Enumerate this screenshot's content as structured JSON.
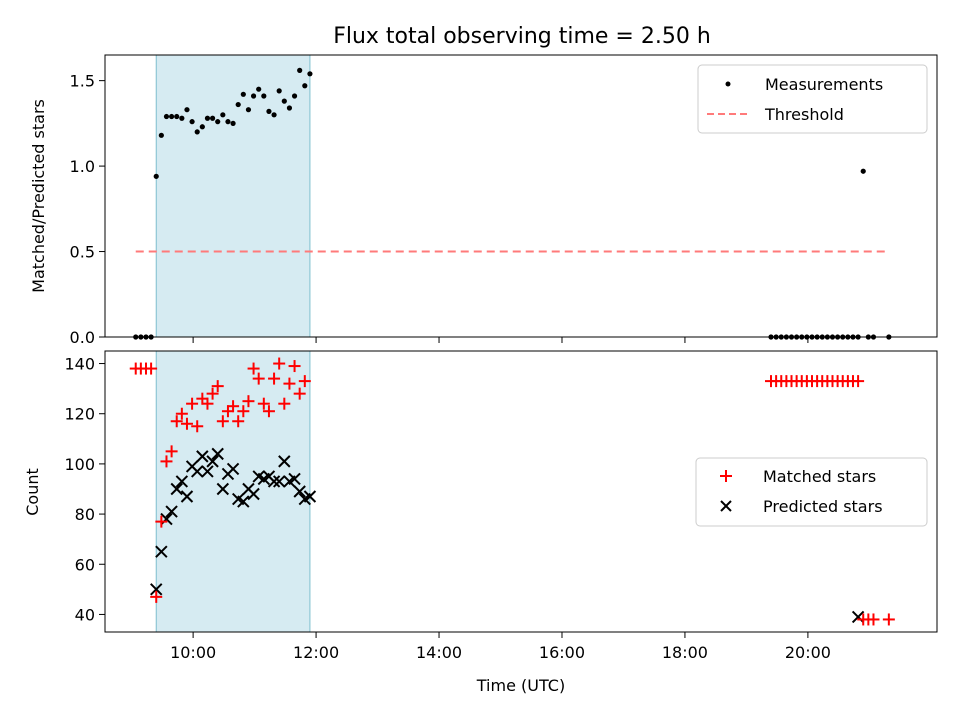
{
  "colors": {
    "measurement": "#000000",
    "threshold": "#ff7a7a",
    "matched": "#ff0000",
    "predicted": "#000000",
    "shade": "#add8e6"
  },
  "chart_data": [
    {
      "type": "scatter",
      "title": "Flux total observing time = 2.50 h",
      "xlabel": "",
      "ylabel": "Matched/Predicted stars",
      "xlim": [
        "08:34",
        "22:06"
      ],
      "ylim": [
        0,
        1.65
      ],
      "yticks": [
        0.0,
        0.5,
        1.0,
        1.5
      ],
      "yticklabels": [
        "0.0",
        "0.5",
        "1.0",
        "1.5"
      ],
      "grid": false,
      "legend": "top-right",
      "shaded_interval": [
        "09:24",
        "11:54"
      ],
      "series": [
        {
          "name": "Measurements",
          "x": [
            "09:04",
            "09:09",
            "09:14",
            "09:19",
            "09:24",
            "09:29",
            "09:34",
            "09:39",
            "09:44",
            "09:49",
            "09:54",
            "09:59",
            "10:04",
            "10:09",
            "10:14",
            "10:19",
            "10:24",
            "10:29",
            "10:34",
            "10:39",
            "10:44",
            "10:49",
            "10:54",
            "10:59",
            "11:04",
            "11:09",
            "11:14",
            "11:19",
            "11:24",
            "11:29",
            "11:34",
            "11:39",
            "11:44",
            "11:49",
            "11:54",
            "19:24",
            "19:29",
            "19:34",
            "19:39",
            "19:44",
            "19:49",
            "19:54",
            "19:59",
            "20:04",
            "20:09",
            "20:14",
            "20:19",
            "20:24",
            "20:29",
            "20:34",
            "20:39",
            "20:44",
            "20:49",
            "20:54",
            "20:59",
            "21:04",
            "21:19"
          ],
          "y": [
            0,
            0,
            0,
            0,
            0.94,
            1.18,
            1.29,
            1.29,
            1.29,
            1.28,
            1.33,
            1.26,
            1.2,
            1.23,
            1.28,
            1.28,
            1.26,
            1.3,
            1.26,
            1.25,
            1.36,
            1.42,
            1.33,
            1.41,
            1.45,
            1.41,
            1.32,
            1.3,
            1.44,
            1.38,
            1.34,
            1.41,
            1.56,
            1.47,
            1.54,
            0,
            0,
            0,
            0,
            0,
            0,
            0,
            0,
            0,
            0,
            0,
            0,
            0,
            0,
            0,
            0,
            0,
            0,
            0.97,
            0,
            0,
            0
          ]
        },
        {
          "name": "Threshold",
          "x": [
            "09:04",
            "21:19"
          ],
          "y": [
            0.5,
            0.5
          ]
        }
      ]
    },
    {
      "type": "scatter",
      "title": "",
      "xlabel": "Time (UTC)",
      "ylabel": "Count",
      "xlim": [
        "08:34",
        "22:06"
      ],
      "ylim": [
        33,
        145
      ],
      "yticks": [
        40,
        60,
        80,
        100,
        120,
        140
      ],
      "yticklabels": [
        "40",
        "60",
        "80",
        "100",
        "120",
        "140"
      ],
      "xticks": [
        "10:00",
        "12:00",
        "14:00",
        "16:00",
        "18:00",
        "20:00"
      ],
      "xticklabels": [
        "10:00",
        "12:00",
        "14:00",
        "16:00",
        "18:00",
        "20:00"
      ],
      "grid": false,
      "legend": "center-right",
      "shaded_interval": [
        "09:24",
        "11:54"
      ],
      "series": [
        {
          "name": "Matched stars",
          "x": [
            "09:04",
            "09:09",
            "09:14",
            "09:19",
            "09:24",
            "09:29",
            "09:34",
            "09:39",
            "09:44",
            "09:49",
            "09:54",
            "09:59",
            "10:04",
            "10:09",
            "10:14",
            "10:19",
            "10:24",
            "10:29",
            "10:34",
            "10:39",
            "10:44",
            "10:49",
            "10:54",
            "10:59",
            "11:04",
            "11:09",
            "11:14",
            "11:19",
            "11:24",
            "11:29",
            "11:34",
            "11:39",
            "11:44",
            "11:49",
            "11:54",
            "19:24",
            "19:29",
            "19:34",
            "19:39",
            "19:44",
            "19:49",
            "19:54",
            "19:59",
            "20:04",
            "20:09",
            "20:14",
            "20:19",
            "20:24",
            "20:29",
            "20:34",
            "20:39",
            "20:44",
            "20:49",
            "20:54",
            "20:59",
            "21:04",
            "21:19"
          ],
          "y": [
            138,
            138,
            138,
            138,
            47,
            77,
            101,
            105,
            117,
            120,
            116,
            124,
            115,
            126,
            124,
            128,
            131,
            117,
            121,
            123,
            117,
            121,
            125,
            138,
            134,
            124,
            121,
            134,
            140,
            124,
            132,
            139,
            128,
            133,
            null,
            133,
            133,
            133,
            133,
            133,
            133,
            133,
            133,
            133,
            133,
            133,
            133,
            133,
            133,
            133,
            133,
            133,
            133,
            38,
            38,
            38,
            38
          ]
        },
        {
          "name": "Predicted stars",
          "x": [
            "09:24",
            "09:29",
            "09:34",
            "09:39",
            "09:44",
            "09:49",
            "09:54",
            "09:59",
            "10:04",
            "10:09",
            "10:14",
            "10:19",
            "10:24",
            "10:29",
            "10:34",
            "10:39",
            "10:44",
            "10:49",
            "10:54",
            "10:59",
            "11:04",
            "11:09",
            "11:14",
            "11:19",
            "11:24",
            "11:29",
            "11:34",
            "11:39",
            "11:44",
            "11:49",
            "11:54",
            "20:49"
          ],
          "y": [
            50,
            65,
            78,
            81,
            90,
            93,
            87,
            99,
            97,
            103,
            97,
            101,
            104,
            90,
            96,
            98,
            86,
            85,
            90,
            88,
            95,
            94,
            95,
            93,
            93,
            101,
            93,
            94,
            89,
            86,
            87,
            39
          ]
        }
      ]
    }
  ]
}
